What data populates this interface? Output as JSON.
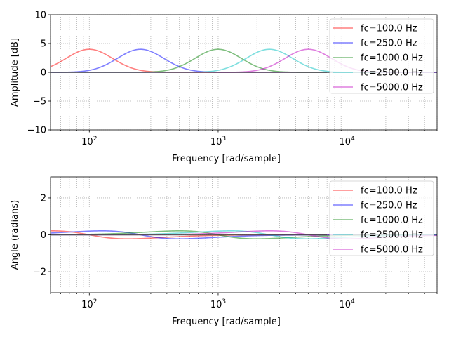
{
  "chart_data": [
    {
      "type": "line",
      "xscale": "log",
      "xlim": [
        50,
        50000
      ],
      "ylim": [
        -10,
        10
      ],
      "xlabel": "Frequency [rad/sample]",
      "ylabel": "Amplitude [dB]",
      "yticks": [
        -10,
        -5,
        0,
        5,
        10
      ],
      "xtick_labels": [
        {
          "value": 100,
          "base": "10",
          "exp": "2"
        },
        {
          "value": 1000,
          "base": "10",
          "exp": "3"
        },
        {
          "value": 10000,
          "base": "10",
          "exp": "4"
        }
      ],
      "grid": true,
      "legend_position": "top-right",
      "series": [
        {
          "name": "fc=100.0 Hz",
          "color": "#ff0000",
          "peak_x": 100,
          "peak_y": 4.0
        },
        {
          "name": "fc=250.0 Hz",
          "color": "#0000ff",
          "peak_x": 250,
          "peak_y": 4.0
        },
        {
          "name": "fc=1000.0 Hz",
          "color": "#008000",
          "peak_x": 1000,
          "peak_y": 4.0
        },
        {
          "name": "fc=2500.0 Hz",
          "color": "#00bfbf",
          "peak_x": 2500,
          "peak_y": 4.0
        },
        {
          "name": "fc=5000.0 Hz",
          "color": "#bf00bf",
          "peak_x": 5000,
          "peak_y": 4.0
        }
      ],
      "baseline": {
        "y": 0,
        "x_end": 7000,
        "color": "#4a4a4a"
      }
    },
    {
      "type": "line",
      "xscale": "log",
      "xlim": [
        50,
        50000
      ],
      "ylim": [
        -3.14,
        3.14
      ],
      "xlabel": "Frequency [rad/sample]",
      "ylabel": "Angle (radians)",
      "yticks": [
        -2,
        0,
        2
      ],
      "xtick_labels": [
        {
          "value": 100,
          "base": "10",
          "exp": "2"
        },
        {
          "value": 1000,
          "base": "10",
          "exp": "3"
        },
        {
          "value": 10000,
          "base": "10",
          "exp": "4"
        }
      ],
      "grid": true,
      "legend_position": "top-right",
      "series": [
        {
          "name": "fc=100.0 Hz",
          "color": "#ff0000",
          "peak_x": 100,
          "amp": 0.24
        },
        {
          "name": "fc=250.0 Hz",
          "color": "#0000ff",
          "peak_x": 250,
          "amp": 0.24
        },
        {
          "name": "fc=1000.0 Hz",
          "color": "#008000",
          "peak_x": 1000,
          "amp": 0.24
        },
        {
          "name": "fc=2500.0 Hz",
          "color": "#00bfbf",
          "peak_x": 2500,
          "amp": 0.24
        },
        {
          "name": "fc=5000.0 Hz",
          "color": "#bf00bf",
          "peak_x": 5000,
          "amp": 0.24
        }
      ],
      "baseline": {
        "y": 0,
        "x_end": 7000,
        "color": "#4a4a4a"
      }
    }
  ]
}
